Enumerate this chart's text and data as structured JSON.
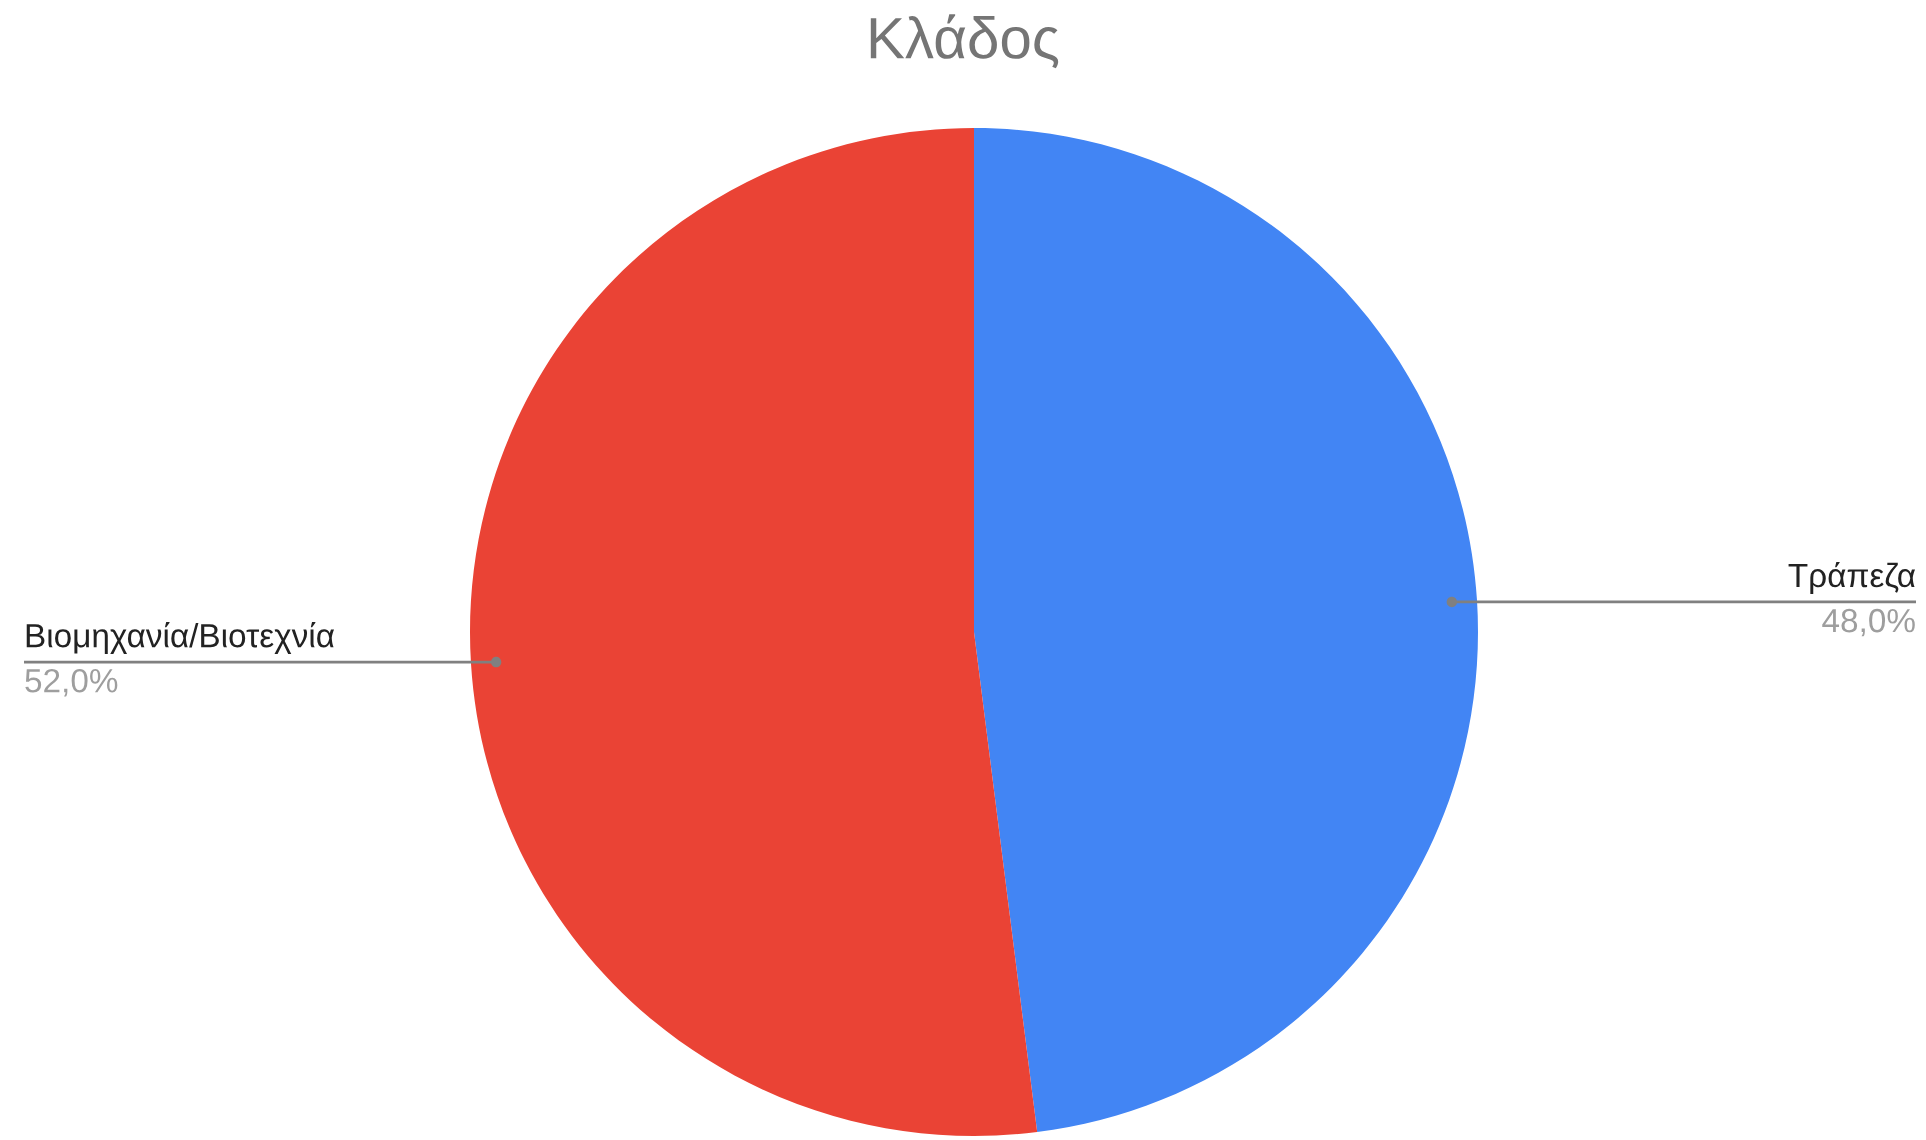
{
  "chart_data": {
    "type": "pie",
    "title": "Κλάδος",
    "categories": [
      "Τράπεζα",
      "Βιομηχανία/Βιοτεχνία"
    ],
    "values": [
      48.0,
      52.0
    ],
    "colors": [
      "#4285f4",
      "#ea4335"
    ],
    "value_labels": [
      "48,0%",
      "52,0%"
    ]
  }
}
